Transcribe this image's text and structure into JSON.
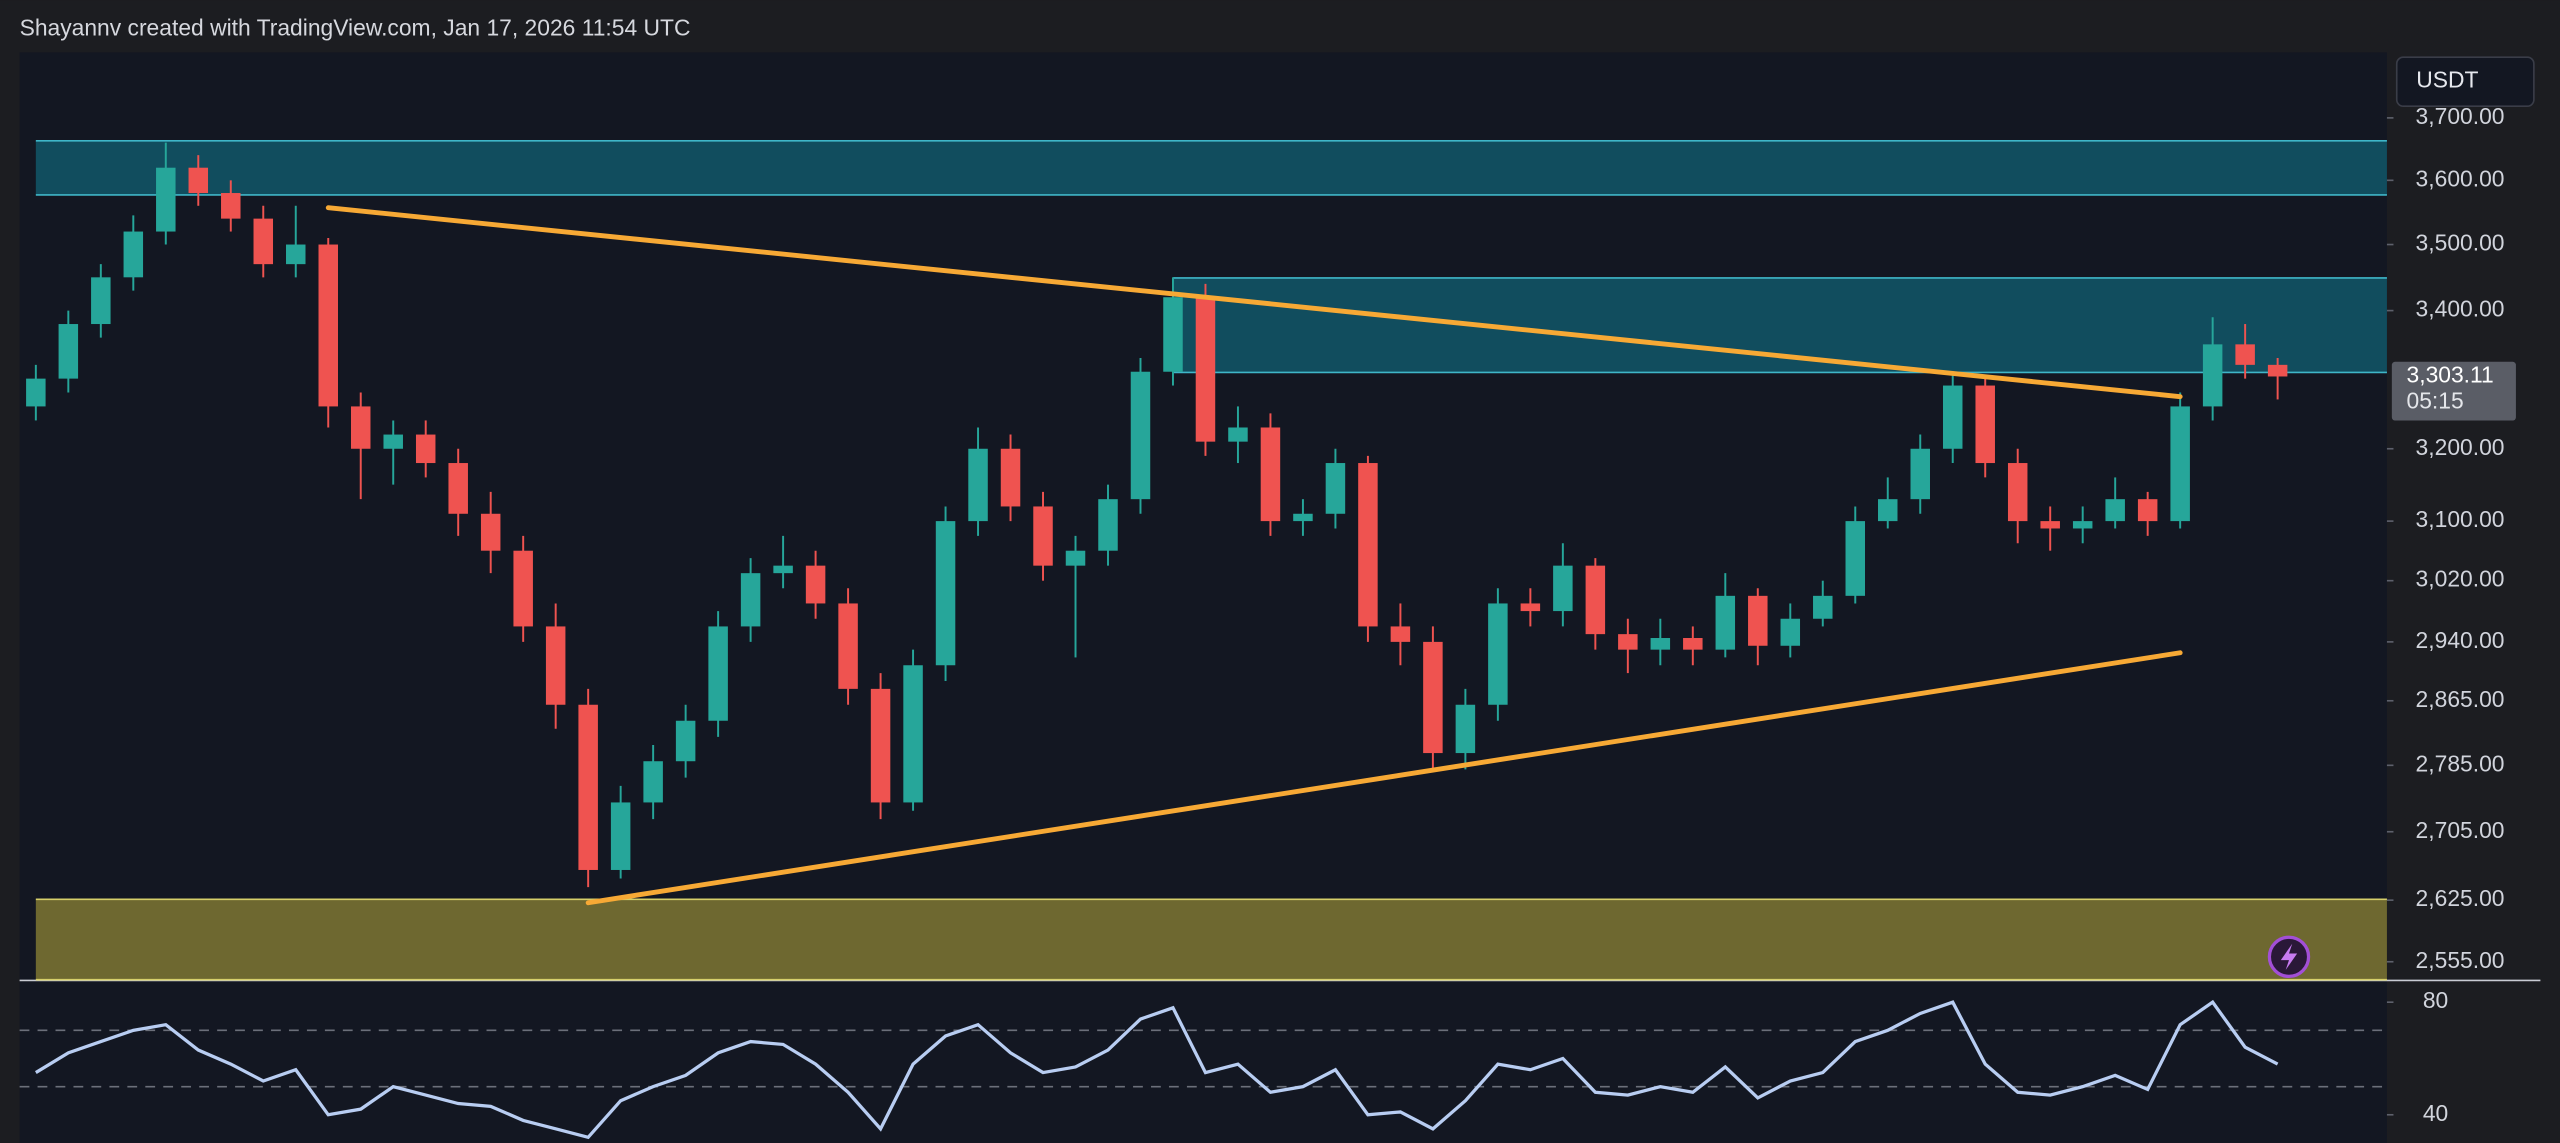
{
  "header": "Shayannv created with TradingView.com, Jan 17, 2026 11:54 UTC",
  "currency": "USDT",
  "chart_data": [
    {
      "type": "candlestick",
      "log_scale": true,
      "up_color": "#26a69a",
      "down_color": "#ef5350",
      "ylim": [
        2535,
        3808
      ],
      "yticks": [
        {
          "value": 3700,
          "label": "3,700.00"
        },
        {
          "value": 3600,
          "label": "3,600.00"
        },
        {
          "value": 3500,
          "label": "3,500.00"
        },
        {
          "value": 3400,
          "label": "3,400.00"
        },
        {
          "value": 3200,
          "label": "3,200.00"
        },
        {
          "value": 3100,
          "label": "3,100.00"
        },
        {
          "value": 3020,
          "label": "3,020.00"
        },
        {
          "value": 2940,
          "label": "2,940.00"
        },
        {
          "value": 2865,
          "label": "2,865.00"
        },
        {
          "value": 2785,
          "label": "2,785.00"
        },
        {
          "value": 2705,
          "label": "2,705.00"
        },
        {
          "value": 2625,
          "label": "2,625.00"
        },
        {
          "value": 2555,
          "label": "2,555.00"
        }
      ],
      "last_price": {
        "value": 3303.11,
        "label": "3,303.11",
        "countdown": "05:15"
      },
      "open": [
        3260,
        3300,
        3380,
        3450,
        3520,
        3620,
        3580,
        3540,
        3470,
        3500,
        3260,
        3200,
        3220,
        3180,
        3110,
        3060,
        2960,
        2860,
        2660,
        2740,
        2790,
        2840,
        2960,
        3030,
        3040,
        2990,
        2880,
        2740,
        2910,
        3100,
        3200,
        3120,
        3040,
        3060,
        3130,
        3310,
        3420,
        3210,
        3230,
        3100,
        3110,
        3180,
        2960,
        2940,
        2800,
        2860,
        2990,
        2980,
        3040,
        2950,
        2930,
        2945,
        2930,
        3000,
        2935,
        2970,
        3000,
        3100,
        3130,
        3200,
        3290,
        3180,
        3100,
        3090,
        3100,
        3130,
        3100,
        3260,
        3350,
        3320
      ],
      "high": [
        3320,
        3400,
        3470,
        3545,
        3660,
        3640,
        3600,
        3560,
        3560,
        3510,
        3280,
        3240,
        3240,
        3200,
        3140,
        3080,
        2990,
        2880,
        2760,
        2810,
        2860,
        2980,
        3050,
        3080,
        3060,
        3010,
        2900,
        2930,
        3120,
        3230,
        3220,
        3140,
        3080,
        3150,
        3330,
        3450,
        3440,
        3260,
        3250,
        3130,
        3200,
        3190,
        2990,
        2960,
        2880,
        3010,
        3010,
        3070,
        3050,
        2970,
        2970,
        2960,
        3030,
        3010,
        2990,
        3020,
        3120,
        3160,
        3220,
        3310,
        3300,
        3200,
        3120,
        3120,
        3160,
        3140,
        3280,
        3390,
        3380,
        3330
      ],
      "low": [
        3240,
        3280,
        3360,
        3430,
        3500,
        3560,
        3520,
        3450,
        3450,
        3230,
        3130,
        3150,
        3160,
        3080,
        3030,
        2940,
        2830,
        2640,
        2650,
        2720,
        2770,
        2820,
        2940,
        3010,
        2970,
        2860,
        2720,
        2730,
        2890,
        3080,
        3100,
        3020,
        2920,
        3040,
        3110,
        3290,
        3190,
        3180,
        3080,
        3080,
        3090,
        2940,
        2910,
        2780,
        2780,
        2840,
        2960,
        2960,
        2930,
        2900,
        2910,
        2910,
        2920,
        2910,
        2920,
        2960,
        2990,
        3090,
        3110,
        3180,
        3160,
        3070,
        3060,
        3070,
        3090,
        3080,
        3090,
        3240,
        3300,
        3270
      ],
      "close": [
        3300,
        3380,
        3450,
        3520,
        3620,
        3580,
        3540,
        3470,
        3500,
        3260,
        3200,
        3220,
        3180,
        3110,
        3060,
        2960,
        2860,
        2660,
        2740,
        2790,
        2840,
        2960,
        3030,
        3040,
        2990,
        2880,
        2740,
        2910,
        3100,
        3200,
        3120,
        3040,
        3060,
        3130,
        3310,
        3420,
        3210,
        3230,
        3100,
        3110,
        3180,
        2960,
        2940,
        2800,
        2860,
        2990,
        2980,
        3040,
        2950,
        2930,
        2945,
        2930,
        3000,
        2935,
        2970,
        3000,
        3100,
        3130,
        3200,
        3290,
        3180,
        3100,
        3090,
        3100,
        3130,
        3100,
        3260,
        3350,
        3320,
        3303.11
      ],
      "zones": [
        {
          "low": 3577,
          "high": 3663,
          "start": 0,
          "color": "#114d5e",
          "border": "#3fb6c8"
        },
        {
          "low": 3309,
          "high": 3449,
          "start": 35,
          "color": "#114d5e",
          "border": "#3fb6c8"
        },
        {
          "low": 2535,
          "high": 2626,
          "start": 0,
          "color": "#6e6830",
          "border": "#d6cf6a"
        }
      ],
      "trendlines": [
        {
          "x": [
            9,
            66
          ],
          "y": [
            3557,
            3274
          ],
          "color": "#f7a935"
        },
        {
          "x": [
            17,
            66
          ],
          "y": [
            2622,
            2926
          ],
          "color": "#f7a935"
        }
      ]
    },
    {
      "type": "line",
      "color": "#b8cdf2",
      "ylim": [
        30,
        88
      ],
      "yticks": [
        80,
        40
      ],
      "bands": [
        70,
        50
      ],
      "values": [
        55,
        62,
        66,
        70,
        72,
        63,
        58,
        52,
        56,
        40,
        42,
        50,
        47,
        44,
        43,
        38,
        35,
        32,
        45,
        50,
        54,
        62,
        66,
        65,
        58,
        48,
        35,
        58,
        68,
        72,
        62,
        55,
        57,
        63,
        74,
        78,
        55,
        58,
        48,
        50,
        56,
        40,
        41,
        35,
        45,
        58,
        56,
        60,
        48,
        47,
        50,
        48,
        57,
        46,
        52,
        55,
        66,
        70,
        76,
        80,
        58,
        48,
        47,
        50,
        54,
        49,
        72,
        80,
        64,
        58
      ]
    }
  ]
}
